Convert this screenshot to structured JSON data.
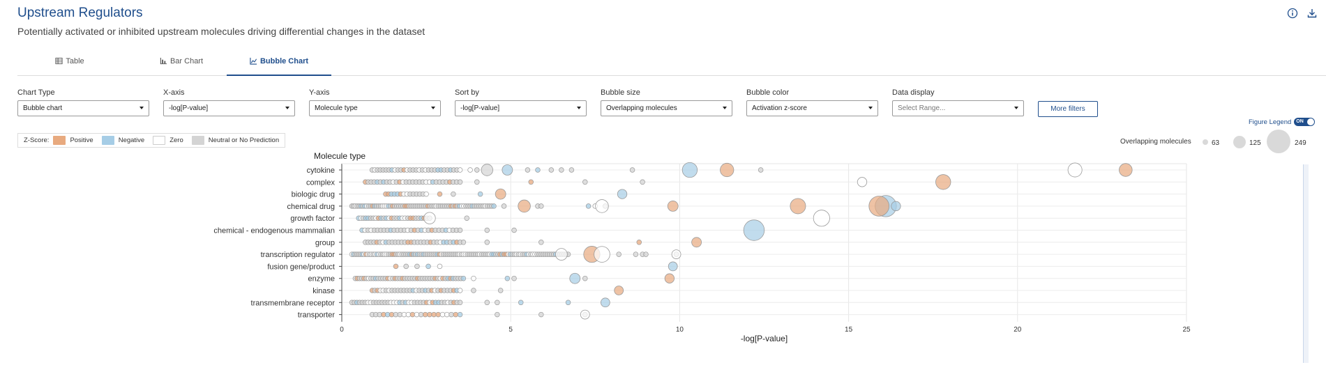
{
  "header": {
    "title": "Upstream Regulators",
    "subtitle": "Potentially activated or inhibited upstream molecules driving differential changes in the dataset"
  },
  "tabs": [
    {
      "label": "Table",
      "icon": "table-icon",
      "active": false
    },
    {
      "label": "Bar Chart",
      "icon": "bar-chart-icon",
      "active": false
    },
    {
      "label": "Bubble Chart",
      "icon": "bubble-chart-icon",
      "active": true
    }
  ],
  "controls": {
    "chart_type": {
      "label": "Chart Type",
      "value": "Bubble chart"
    },
    "x_axis": {
      "label": "X-axis",
      "value": "-log[P-value]"
    },
    "y_axis": {
      "label": "Y-axis",
      "value": "Molecule type"
    },
    "sort_by": {
      "label": "Sort by",
      "value": "-log[P-value]"
    },
    "bubble_size": {
      "label": "Bubble size",
      "value": "Overlapping molecules"
    },
    "bubble_color": {
      "label": "Bubble color",
      "value": "Activation z-score"
    },
    "data_display": {
      "label": "Data display",
      "placeholder": "Select Range..."
    },
    "more_filters_label": "More filters"
  },
  "zscore_legend": {
    "label": "Z-Score:",
    "items": [
      {
        "label": "Positive",
        "color": "#e8aa7f"
      },
      {
        "label": "Negative",
        "color": "#a6cde6"
      },
      {
        "label": "Zero",
        "color": "#ffffff"
      },
      {
        "label": "Neutral or No Prediction",
        "color": "#d4d4d4"
      }
    ]
  },
  "figure_legend": {
    "label": "Figure Legend",
    "toggle": "ON"
  },
  "size_legend": {
    "label": "Overlapping molecules",
    "values": [
      "63",
      "125",
      "249"
    ]
  },
  "colors": {
    "accent": "#1f4e8c",
    "positive": "#e8aa7f",
    "negative": "#a6cde6",
    "zero": "#ffffff",
    "neutral": "#d4d4d4"
  },
  "chart_data": {
    "type": "scatter",
    "subtype": "bubble",
    "xlabel": "-log[P-value]",
    "ylabel": "Molecule type",
    "xlim": [
      0,
      25
    ],
    "xticks": [
      "0",
      "5",
      "10",
      "15",
      "20",
      "25"
    ],
    "grid": true,
    "categories": [
      "cytokine",
      "complex",
      "biologic drug",
      "chemical drug",
      "growth factor",
      "chemical - endogenous mammalian",
      "group",
      "transcription regulator",
      "fusion gene/product",
      "enzyme",
      "kinase",
      "transmembrane receptor",
      "transporter"
    ],
    "large_points": [
      {
        "category": "cytokine",
        "x": 10.3,
        "size": 60,
        "z": "negative"
      },
      {
        "category": "cytokine",
        "x": 11.4,
        "size": 45,
        "z": "positive"
      },
      {
        "category": "cytokine",
        "x": 21.7,
        "size": 50,
        "z": "zero"
      },
      {
        "category": "cytokine",
        "x": 23.2,
        "size": 40,
        "z": "positive"
      },
      {
        "category": "cytokine",
        "x": 4.3,
        "size": 28,
        "z": "neutral"
      },
      {
        "category": "cytokine",
        "x": 4.9,
        "size": 20,
        "z": "negative"
      },
      {
        "category": "complex",
        "x": 17.8,
        "size": 60,
        "z": "positive"
      },
      {
        "category": "complex",
        "x": 15.4,
        "size": 14,
        "z": "zero"
      },
      {
        "category": "biologic drug",
        "x": 4.7,
        "size": 20,
        "z": "positive"
      },
      {
        "category": "biologic drug",
        "x": 8.3,
        "size": 14,
        "z": "negative"
      },
      {
        "category": "chemical drug",
        "x": 16.1,
        "size": 150,
        "z": "negative"
      },
      {
        "category": "chemical drug",
        "x": 15.9,
        "size": 130,
        "z": "positive"
      },
      {
        "category": "chemical drug",
        "x": 13.5,
        "size": 65,
        "z": "positive"
      },
      {
        "category": "chemical drug",
        "x": 16.4,
        "size": 14,
        "z": "negative"
      },
      {
        "category": "chemical drug",
        "x": 7.7,
        "size": 40,
        "z": "zero"
      },
      {
        "category": "chemical drug",
        "x": 5.4,
        "size": 34,
        "z": "positive"
      },
      {
        "category": "chemical drug",
        "x": 9.8,
        "size": 20,
        "z": "positive"
      },
      {
        "category": "growth factor",
        "x": 14.2,
        "size": 75,
        "z": "zero"
      },
      {
        "category": "growth factor",
        "x": 2.6,
        "size": 28,
        "z": "zero"
      },
      {
        "category": "chemical - endogenous mammalian",
        "x": 12.2,
        "size": 140,
        "z": "negative"
      },
      {
        "category": "group",
        "x": 10.5,
        "size": 16,
        "z": "positive"
      },
      {
        "category": "transcription regulator",
        "x": 7.4,
        "size": 75,
        "z": "positive"
      },
      {
        "category": "transcription regulator",
        "x": 7.7,
        "size": 70,
        "z": "zero"
      },
      {
        "category": "transcription regulator",
        "x": 6.5,
        "size": 30,
        "z": "zero"
      },
      {
        "category": "transcription regulator",
        "x": 9.9,
        "size": 12,
        "z": "zero"
      },
      {
        "category": "fusion gene/product",
        "x": 9.8,
        "size": 12,
        "z": "negative"
      },
      {
        "category": "enzyme",
        "x": 6.9,
        "size": 20,
        "z": "negative"
      },
      {
        "category": "enzyme",
        "x": 9.7,
        "size": 14,
        "z": "positive"
      },
      {
        "category": "kinase",
        "x": 8.2,
        "size": 12,
        "z": "positive"
      },
      {
        "category": "transmembrane receptor",
        "x": 7.8,
        "size": 12,
        "z": "negative"
      },
      {
        "category": "transporter",
        "x": 7.2,
        "size": 12,
        "z": "zero"
      }
    ],
    "small_points": [
      {
        "category": "cytokine",
        "x_min": 0.9,
        "x_max": 3.5,
        "count": 30,
        "extra_x": [
          3.8,
          4.0,
          5.5,
          5.8,
          6.2,
          6.5,
          6.8,
          8.6,
          12.4
        ]
      },
      {
        "category": "complex",
        "x_min": 0.7,
        "x_max": 3.5,
        "count": 30,
        "extra_x": [
          4.0,
          5.6,
          7.2,
          8.9
        ]
      },
      {
        "category": "biologic drug",
        "x_min": 1.3,
        "x_max": 2.5,
        "count": 14,
        "extra_x": [
          2.9,
          3.3,
          4.1
        ]
      },
      {
        "category": "chemical drug",
        "x_min": 0.3,
        "x_max": 4.5,
        "count": 70,
        "extra_x": [
          4.8,
          5.8,
          5.9,
          7.3,
          7.5,
          7.8
        ]
      },
      {
        "category": "growth factor",
        "x_min": 0.5,
        "x_max": 2.6,
        "count": 28,
        "extra_x": [
          3.7
        ]
      },
      {
        "category": "chemical - endogenous mammalian",
        "x_min": 0.6,
        "x_max": 3.5,
        "count": 30,
        "extra_x": [
          4.3,
          5.1
        ]
      },
      {
        "category": "group",
        "x_min": 0.7,
        "x_max": 3.6,
        "count": 32,
        "extra_x": [
          4.3,
          5.9,
          8.8
        ]
      },
      {
        "category": "transcription regulator",
        "x_min": 0.3,
        "x_max": 6.7,
        "count": 110,
        "extra_x": [
          8.2,
          8.7,
          8.9,
          9.0,
          9.9
        ]
      },
      {
        "category": "fusion gene/product",
        "x_min": 1.6,
        "x_max": 2.9,
        "count": 5,
        "extra_x": []
      },
      {
        "category": "enzyme",
        "x_min": 0.4,
        "x_max": 3.6,
        "count": 45,
        "extra_x": [
          3.9,
          4.9,
          5.1,
          7.2
        ]
      },
      {
        "category": "kinase",
        "x_min": 0.9,
        "x_max": 3.5,
        "count": 30,
        "extra_x": [
          3.9,
          4.7
        ]
      },
      {
        "category": "transmembrane receptor",
        "x_min": 0.3,
        "x_max": 3.5,
        "count": 38,
        "extra_x": [
          4.3,
          4.6,
          5.3,
          6.7
        ]
      },
      {
        "category": "transporter",
        "x_min": 0.9,
        "x_max": 3.5,
        "count": 22,
        "extra_x": [
          4.6,
          5.9,
          7.2
        ]
      }
    ]
  }
}
